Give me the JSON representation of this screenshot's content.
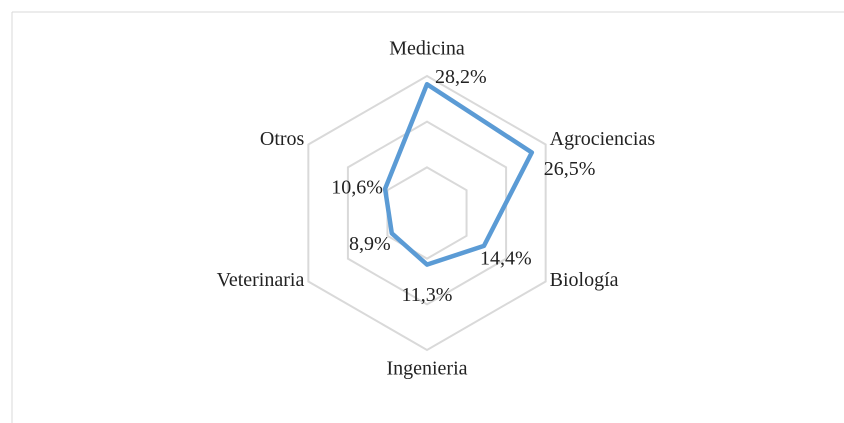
{
  "chart_data": {
    "type": "radar",
    "categories": [
      "Medicina",
      "Agrociencias",
      "Biología",
      "Ingenieria",
      "Veterinaria",
      "Otros"
    ],
    "values": [
      28.2,
      26.5,
      14.4,
      11.3,
      8.9,
      10.6
    ],
    "value_labels": [
      "28,2%",
      "26,5%",
      "14,4%",
      "11,3%",
      "8,9%",
      "10,6%"
    ],
    "color": "#5b9bd5",
    "rlim": [
      0,
      30
    ],
    "rticks": [
      10,
      20,
      30
    ],
    "grid": true
  }
}
